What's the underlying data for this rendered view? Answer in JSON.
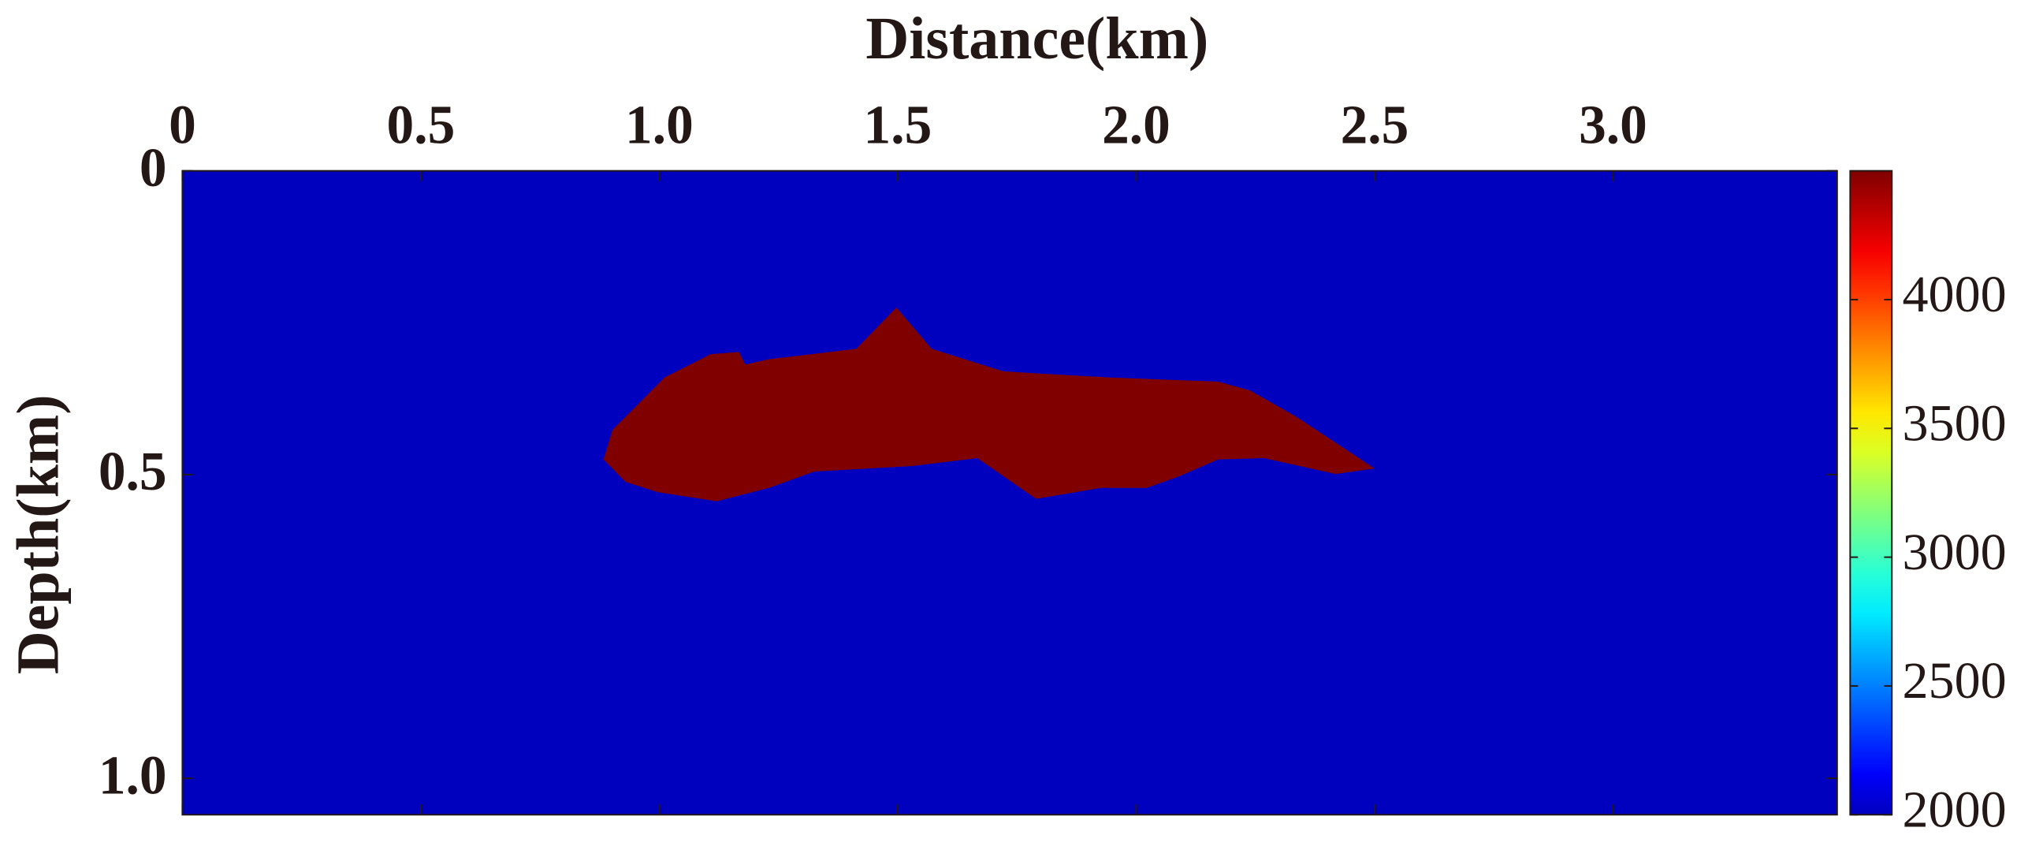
{
  "chart_data": {
    "type": "velocity-model",
    "xlabel": "Distance(km)",
    "ylabel": "Depth(km)",
    "xlim": [
      0,
      3.47
    ],
    "ylim": [
      0,
      1.06
    ],
    "xticks": [
      0,
      0.5,
      {
        "value": 1,
        "label": "1.0"
      },
      1.5,
      {
        "value": 2,
        "label": "2.0"
      },
      2.5,
      {
        "value": 3,
        "label": "3.0"
      }
    ],
    "yticks": [
      0,
      0.5,
      {
        "value": 1,
        "label": "1.0"
      }
    ],
    "clim": [
      2000,
      4500
    ],
    "cticks": [
      2000,
      2500,
      3000,
      3500,
      4000
    ],
    "colormap": "jet",
    "background_value": 2000,
    "body": {
      "value": 4500,
      "x": [
        0.883,
        0.902,
        0.943,
        1.011,
        1.107,
        1.167,
        1.18,
        1.23,
        1.413,
        1.497,
        1.571,
        1.721,
        1.803,
        1.94,
        2.172,
        2.24,
        2.336,
        2.5,
        2.418,
        2.268,
        2.172,
        2.09,
        2.022,
        1.926,
        1.79,
        1.667,
        1.53,
        1.325,
        1.23,
        1.12,
        0.997,
        0.929
      ],
      "y": [
        0.475,
        0.426,
        0.394,
        0.34,
        0.302,
        0.298,
        0.319,
        0.31,
        0.293,
        0.225,
        0.293,
        0.33,
        0.334,
        0.34,
        0.347,
        0.362,
        0.405,
        0.49,
        0.499,
        0.473,
        0.475,
        0.503,
        0.522,
        0.522,
        0.54,
        0.473,
        0.486,
        0.495,
        0.522,
        0.544,
        0.529,
        0.512
      ]
    }
  }
}
